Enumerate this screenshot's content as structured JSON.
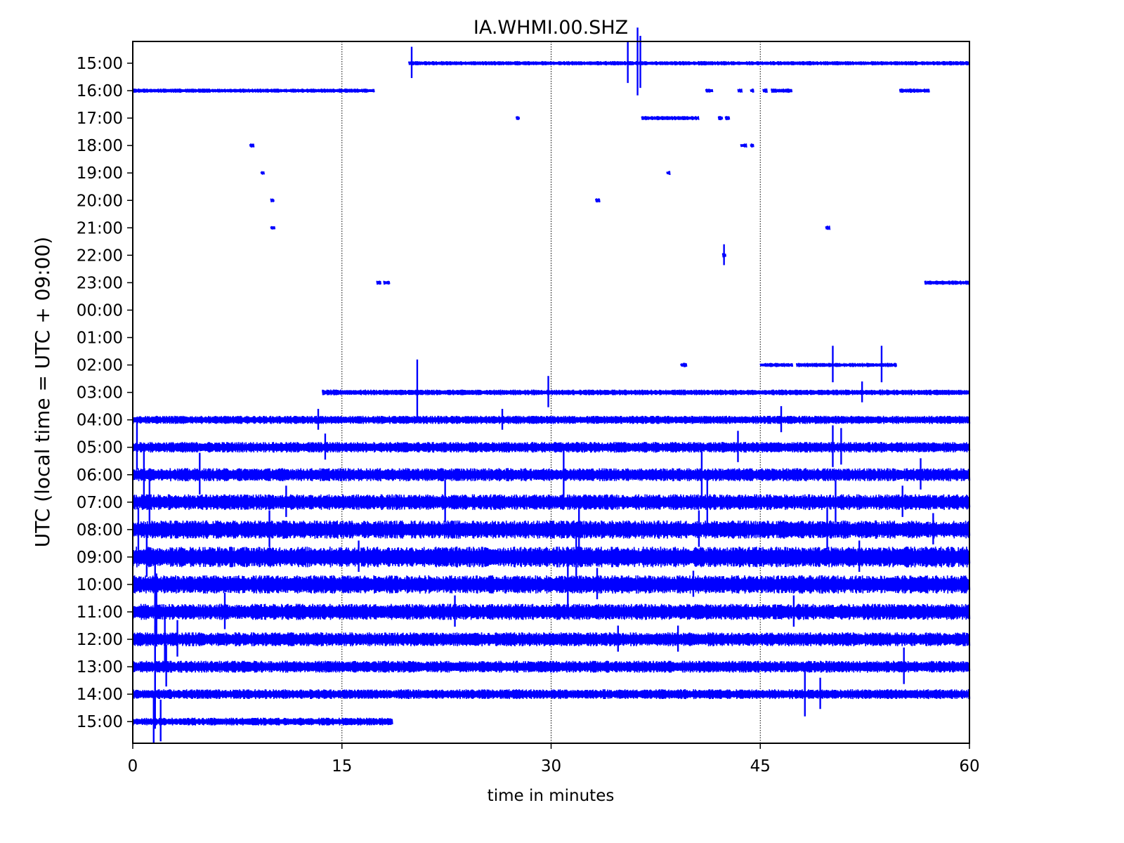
{
  "chart_data": {
    "type": "line",
    "title": "IA.WHMI.00.SHZ",
    "xlabel": "time in minutes",
    "ylabel": "UTC (local time = UTC + 09:00)",
    "xlim": [
      0,
      60
    ],
    "xticks": [
      0,
      15,
      30,
      45,
      60
    ],
    "grid": "vertical dotted lines at 15, 30, 45",
    "trace_color": "#0000ff",
    "rows": [
      {
        "label": "15:00",
        "segments": [
          [
            19.8,
            60
          ]
        ],
        "spikes": [
          [
            20.0,
            0.6
          ],
          [
            35.5,
            0.8
          ],
          [
            36.2,
            1.3
          ],
          [
            36.4,
            1.0
          ]
        ]
      },
      {
        "label": "16:00",
        "segments": [
          [
            0,
            17.3
          ],
          [
            41.1,
            41.6
          ],
          [
            43.4,
            43.7
          ],
          [
            44.3,
            44.5
          ],
          [
            45.2,
            45.5
          ],
          [
            45.8,
            47.3
          ],
          [
            55.0,
            57.1
          ]
        ],
        "spikes": []
      },
      {
        "label": "17:00",
        "segments": [
          [
            27.5,
            27.7
          ],
          [
            36.5,
            40.6
          ],
          [
            42.0,
            42.3
          ],
          [
            42.5,
            42.8
          ]
        ],
        "spikes": []
      },
      {
        "label": "18:00",
        "segments": [
          [
            8.4,
            8.7
          ],
          [
            43.6,
            44.0
          ],
          [
            44.3,
            44.5
          ]
        ],
        "spikes": []
      },
      {
        "label": "19:00",
        "segments": [
          [
            9.2,
            9.4
          ],
          [
            38.3,
            38.5
          ]
        ],
        "spikes": []
      },
      {
        "label": "20:00",
        "segments": [
          [
            9.9,
            10.1
          ],
          [
            33.2,
            33.5
          ]
        ],
        "spikes": []
      },
      {
        "label": "21:00",
        "segments": [
          [
            9.9,
            10.2
          ],
          [
            49.7,
            50.0
          ]
        ],
        "spikes": []
      },
      {
        "label": "22:00",
        "segments": [
          [
            42.3,
            42.5
          ]
        ],
        "spikes": [
          [
            42.4,
            0.4
          ]
        ]
      },
      {
        "label": "23:00",
        "segments": [
          [
            17.5,
            17.8
          ],
          [
            18.0,
            18.4
          ],
          [
            56.8,
            60
          ]
        ],
        "spikes": []
      },
      {
        "label": "00:00",
        "segments": [],
        "spikes": []
      },
      {
        "label": "01:00",
        "segments": [],
        "spikes": []
      },
      {
        "label": "02:00",
        "segments": [
          [
            39.3,
            39.7
          ],
          [
            45.0,
            47.3
          ],
          [
            47.6,
            54.8
          ]
        ],
        "spikes": [
          [
            50.2,
            0.7
          ],
          [
            53.7,
            0.7
          ]
        ]
      },
      {
        "label": "03:00",
        "segments": [
          [
            13.6,
            60
          ]
        ],
        "spikes": [
          [
            20.4,
            1.2
          ],
          [
            29.8,
            0.6
          ],
          [
            52.3,
            0.4
          ]
        ]
      },
      {
        "label": "04:00",
        "segments": [
          [
            0,
            60
          ]
        ],
        "spikes": [
          [
            13.3,
            0.4
          ],
          [
            26.5,
            0.4
          ],
          [
            46.5,
            0.5
          ]
        ]
      },
      {
        "label": "05:00",
        "segments": [
          [
            0,
            60
          ]
        ],
        "spikes": [
          [
            0.3,
            0.9
          ],
          [
            13.8,
            0.5
          ],
          [
            43.4,
            0.6
          ],
          [
            50.2,
            0.8
          ],
          [
            50.8,
            0.7
          ]
        ]
      },
      {
        "label": "06:00",
        "segments": [
          [
            0,
            60
          ]
        ],
        "spikes": [
          [
            0.8,
            1.0
          ],
          [
            4.8,
            0.8
          ],
          [
            30.9,
            1.0
          ],
          [
            40.8,
            0.9
          ],
          [
            56.5,
            0.6
          ]
        ]
      },
      {
        "label": "07:00",
        "segments": [
          [
            0,
            60
          ]
        ],
        "spikes": [
          [
            1.2,
            0.9
          ],
          [
            11.0,
            0.6
          ],
          [
            22.4,
            0.8
          ],
          [
            41.2,
            0.9
          ],
          [
            50.4,
            0.8
          ],
          [
            55.2,
            0.6
          ]
        ]
      },
      {
        "label": "08:00",
        "segments": [
          [
            0,
            60
          ]
        ],
        "spikes": [
          [
            0.4,
            0.8
          ],
          [
            9.8,
            0.7
          ],
          [
            32.0,
            0.9
          ],
          [
            40.6,
            0.7
          ],
          [
            49.8,
            0.8
          ],
          [
            57.4,
            0.6
          ]
        ]
      },
      {
        "label": "09:00",
        "segments": [
          [
            0,
            60
          ]
        ],
        "spikes": [
          [
            1.0,
            0.8
          ],
          [
            16.2,
            0.6
          ],
          [
            31.8,
            1.0
          ],
          [
            52.1,
            0.6
          ]
        ]
      },
      {
        "label": "10:00",
        "segments": [
          [
            0,
            60
          ]
        ],
        "spikes": [
          [
            1.6,
            1.1
          ],
          [
            31.2,
            1.0
          ],
          [
            33.3,
            0.6
          ],
          [
            40.2,
            0.5
          ]
        ]
      },
      {
        "label": "11:00",
        "segments": [
          [
            0,
            60
          ]
        ],
        "spikes": [
          [
            1.7,
            1.4
          ],
          [
            6.6,
            0.7
          ],
          [
            23.1,
            0.6
          ],
          [
            47.4,
            0.6
          ]
        ]
      },
      {
        "label": "12:00",
        "segments": [
          [
            0,
            60
          ]
        ],
        "spikes": [
          [
            1.6,
            1.6
          ],
          [
            2.3,
            1.0
          ],
          [
            3.2,
            0.7
          ],
          [
            34.8,
            0.5
          ],
          [
            39.1,
            0.5
          ]
        ]
      },
      {
        "label": "13:00",
        "segments": [
          [
            0,
            60
          ]
        ],
        "spikes": [
          [
            1.6,
            1.5
          ],
          [
            2.4,
            0.8
          ],
          [
            55.3,
            0.7
          ]
        ]
      },
      {
        "label": "14:00",
        "segments": [
          [
            0,
            60
          ]
        ],
        "spikes": [
          [
            1.6,
            1.4
          ],
          [
            48.2,
            0.9
          ],
          [
            49.3,
            0.6
          ]
        ]
      },
      {
        "label": "15:00",
        "segments": [
          [
            0,
            18.6
          ]
        ],
        "spikes": [
          [
            1.5,
            0.9
          ],
          [
            2.0,
            0.8
          ]
        ]
      }
    ]
  }
}
